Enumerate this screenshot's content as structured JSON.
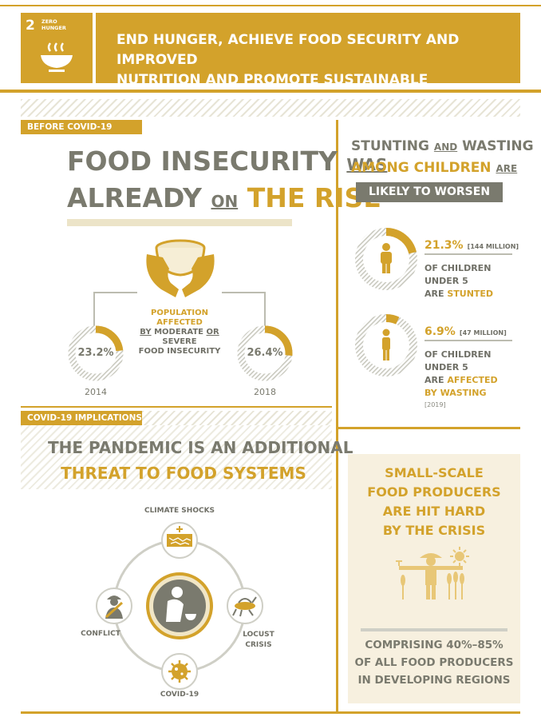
{
  "header": {
    "sdg_number": "2",
    "sdg_name": "ZERO HUNGER",
    "title_line1": "END HUNGER, ACHIEVE FOOD SECURITY AND IMPROVED",
    "title_line2": "NUTRITION AND PROMOTE SUSTAINABLE AGRICULTURE"
  },
  "before": {
    "tag": "BEFORE COVID-19",
    "title": {
      "w1": "FOOD INSECURITY",
      "w2": "WAS",
      "w3": "ALREADY",
      "w4": "ON",
      "w5": "THE RISE"
    },
    "center_label": {
      "line1": "POPULATION AFFECTED",
      "by": "BY",
      "moderate": "MODERATE",
      "or": "OR",
      "severe": "SEVERE",
      "line3": "FOOD INSECURITY"
    },
    "left": {
      "value_label": "23.2%",
      "value": 23.2,
      "year": "2014"
    },
    "right": {
      "value_label": "26.4%",
      "value": 26.4,
      "year": "2018"
    }
  },
  "children": {
    "title": {
      "w1": "STUNTING",
      "w2": "AND",
      "w3": "WASTING",
      "w4": "AMONG CHILDREN",
      "w5": "ARE",
      "badge": "LIKELY TO WORSEN"
    },
    "stunted": {
      "pct": "21.3%",
      "value": 21.3,
      "count": "[144 MILLION]",
      "l1": "OF CHILDREN",
      "l2": "UNDER 5",
      "l3a": "ARE",
      "l3b": "STUNTED"
    },
    "wasting": {
      "pct": "6.9%",
      "value": 6.9,
      "count": "[47 MILLION]",
      "l1": "OF CHILDREN",
      "l2": "UNDER 5",
      "l3a": "ARE",
      "l3b": "AFFECTED",
      "l4": "BY WASTING",
      "year": "[2019]"
    }
  },
  "implications": {
    "tag": "COVID-19 IMPLICATIONS",
    "title_line1": "THE PANDEMIC IS AN ADDITIONAL",
    "title_line2": "THREAT TO FOOD SYSTEMS",
    "nodes": {
      "top": "CLIMATE SHOCKS",
      "left": "CONFLICT",
      "right1": "LOCUST",
      "right2": "CRISIS",
      "bottom": "COVID-19"
    }
  },
  "producers": {
    "l1": "SMALL-SCALE",
    "l2": "FOOD PRODUCERS",
    "l3": "ARE HIT HARD",
    "l4": "BY THE CRISIS",
    "b1": "COMPRISING 40%–85%",
    "b2": "OF ALL FOOD PRODUCERS",
    "b3": "IN DEVELOPING REGIONS"
  },
  "colors": {
    "gold": "#d3a22b",
    "grey": "#7a7a6e",
    "light": "#e7e4d6",
    "cream": "#f7f0df"
  }
}
